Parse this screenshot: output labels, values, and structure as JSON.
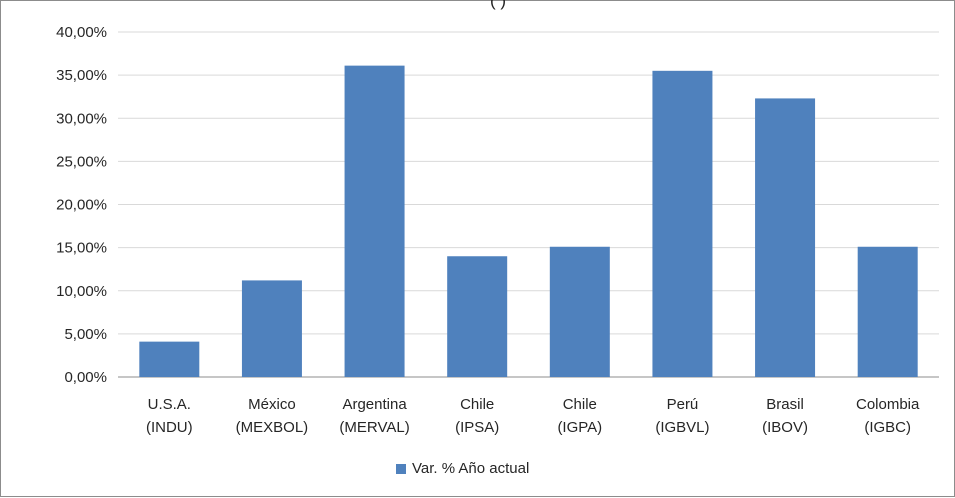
{
  "chart_data": {
    "type": "bar",
    "title": "",
    "top_title_fragment": "(                                    )",
    "categories": [
      [
        "U.S.A.",
        "(INDU)"
      ],
      [
        "México",
        "(MEXBOL)"
      ],
      [
        "Argentina",
        "(MERVAL)"
      ],
      [
        "Chile",
        "(IPSA)"
      ],
      [
        "Chile",
        "(IGPA)"
      ],
      [
        "Perú",
        "(IGBVL)"
      ],
      [
        "Brasil",
        "(IBOV)"
      ],
      [
        "Colombia",
        "(IGBC)"
      ]
    ],
    "series": [
      {
        "name": "Var. % Año actual",
        "values": [
          4.1,
          11.2,
          36.1,
          14.0,
          15.1,
          35.5,
          32.3,
          15.1
        ],
        "color": "#4f81bd"
      }
    ],
    "ylim": [
      0,
      40
    ],
    "yticks": [
      "0,00%",
      "5,00%",
      "10,00%",
      "15,00%",
      "20,00%",
      "25,00%",
      "30,00%",
      "35,00%",
      "40,00%"
    ],
    "grid": true,
    "legend_position": "bottom"
  }
}
